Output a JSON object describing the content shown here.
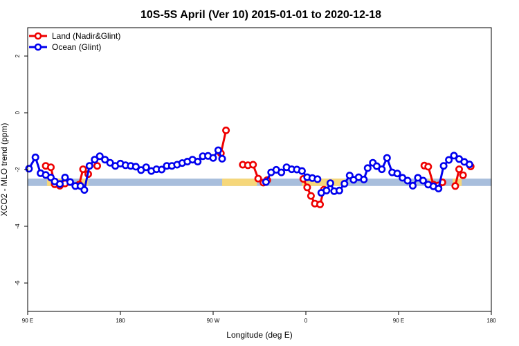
{
  "chart_data": {
    "type": "line",
    "title": "10S-5S April (Ver 10)   2015-01-01 to 2020-12-18",
    "xlabel": "Longitude (deg E)",
    "ylabel": "XCO2 - MLO trend (ppm)",
    "xlim": [
      90,
      450
    ],
    "ylim": [
      -7,
      3
    ],
    "x_ticks": [
      {
        "value": 90,
        "label": "90 E"
      },
      {
        "value": 162,
        "label": "180"
      },
      {
        "value": 234,
        "label": "90 W"
      },
      {
        "value": 306,
        "label": "0"
      },
      {
        "value": 378,
        "label": "90 E"
      },
      {
        "value": 450,
        "label": "180"
      }
    ],
    "y_ticks": [
      {
        "value": 2,
        "label": "2"
      },
      {
        "value": 0,
        "label": "0"
      },
      {
        "value": -2,
        "label": "-2"
      },
      {
        "value": -4,
        "label": "-4"
      },
      {
        "value": -6,
        "label": "-6"
      }
    ],
    "legend_position": "top-left",
    "grid": false,
    "band": {
      "ymin": -2.58,
      "ymax": -2.32,
      "base_color": "#a8bedc",
      "highlight_color": "#f6d77a",
      "highlight_ranges": [
        [
          105,
          118
        ],
        [
          131,
          137
        ],
        [
          241,
          268
        ],
        [
          303,
          336
        ],
        [
          401,
          405
        ],
        [
          420,
          427
        ]
      ]
    },
    "series": [
      {
        "name": "Land (Nadir&Glint)",
        "color": "#ee0000",
        "segments": [
          [
            [
              104,
              -1.87
            ],
            [
              108,
              -1.92
            ],
            [
              111,
              -2.52
            ],
            [
              115,
              -2.57
            ],
            [
              119,
              -2.49
            ]
          ],
          [
            [
              130,
              -2.53
            ],
            [
              133,
              -1.99
            ],
            [
              137,
              -2.16
            ]
          ],
          [
            [
              144,
              -1.87
            ]
          ],
          [
            [
              240,
              -1.43
            ],
            [
              244,
              -0.62
            ]
          ],
          [
            [
              257,
              -1.83
            ],
            [
              261,
              -1.85
            ],
            [
              265,
              -1.83
            ],
            [
              269,
              -2.32
            ],
            [
              273,
              -2.46
            ],
            [
              276,
              -2.37
            ]
          ],
          [
            [
              304,
              -2.33
            ],
            [
              307,
              -2.63
            ],
            [
              310,
              -2.93
            ],
            [
              313,
              -3.2
            ],
            [
              317,
              -3.23
            ],
            [
              320,
              -2.71
            ]
          ],
          [
            [
              398,
              -1.86
            ],
            [
              401,
              -1.9
            ],
            [
              405,
              -2.53
            ],
            [
              409,
              -2.56
            ],
            [
              412,
              -2.45
            ]
          ],
          [
            [
              422,
              -2.58
            ],
            [
              425,
              -1.99
            ],
            [
              428,
              -2.2
            ]
          ],
          [
            [
              434,
              -1.89
            ]
          ]
        ]
      },
      {
        "name": "Ocean (Glint)",
        "color": "#0000ee",
        "segments": [
          [
            [
              91,
              -1.97
            ],
            [
              96,
              -1.57
            ],
            [
              100,
              -2.13
            ],
            [
              104,
              -2.19
            ],
            [
              108,
              -2.28
            ],
            [
              111,
              -2.42
            ],
            [
              115,
              -2.51
            ],
            [
              119,
              -2.28
            ],
            [
              123,
              -2.44
            ],
            [
              127,
              -2.58
            ],
            [
              131,
              -2.58
            ],
            [
              134,
              -2.72
            ],
            [
              138,
              -1.87
            ],
            [
              142,
              -1.65
            ],
            [
              146,
              -1.53
            ],
            [
              150,
              -1.65
            ],
            [
              154,
              -1.76
            ],
            [
              158,
              -1.87
            ],
            [
              162,
              -1.79
            ],
            [
              166,
              -1.85
            ],
            [
              170,
              -1.87
            ],
            [
              174,
              -1.9
            ],
            [
              178,
              -2.02
            ],
            [
              182,
              -1.92
            ],
            [
              186,
              -2.05
            ],
            [
              190,
              -1.99
            ],
            [
              194,
              -2.0
            ],
            [
              198,
              -1.87
            ],
            [
              202,
              -1.87
            ],
            [
              206,
              -1.83
            ],
            [
              210,
              -1.77
            ],
            [
              214,
              -1.72
            ],
            [
              218,
              -1.65
            ],
            [
              222,
              -1.72
            ],
            [
              226,
              -1.53
            ],
            [
              230,
              -1.52
            ],
            [
              234,
              -1.59
            ],
            [
              238,
              -1.32
            ],
            [
              241,
              -1.62
            ]
          ],
          [
            [
              275,
              -2.44
            ],
            [
              279,
              -2.1
            ],
            [
              283,
              -2.01
            ],
            [
              287,
              -2.1
            ],
            [
              291,
              -1.92
            ],
            [
              295,
              -1.99
            ],
            [
              299,
              -2.0
            ],
            [
              303,
              -2.05
            ],
            [
              307,
              -2.27
            ],
            [
              311,
              -2.3
            ],
            [
              315,
              -2.34
            ]
          ],
          [
            [
              318,
              -2.82
            ],
            [
              322,
              -2.74
            ],
            [
              325,
              -2.48
            ],
            [
              328,
              -2.76
            ],
            [
              332,
              -2.74
            ],
            [
              336,
              -2.5
            ],
            [
              340,
              -2.21
            ],
            [
              343,
              -2.36
            ],
            [
              347,
              -2.27
            ],
            [
              351,
              -2.35
            ],
            [
              354,
              -1.95
            ],
            [
              358,
              -1.76
            ],
            [
              361,
              -1.88
            ],
            [
              365,
              -1.99
            ],
            [
              369,
              -1.59
            ],
            [
              373,
              -2.1
            ],
            [
              377,
              -2.14
            ],
            [
              381,
              -2.29
            ],
            [
              385,
              -2.39
            ],
            [
              389,
              -2.57
            ],
            [
              393,
              -2.29
            ],
            [
              397,
              -2.39
            ],
            [
              401,
              -2.53
            ],
            [
              405,
              -2.59
            ],
            [
              409,
              -2.67
            ],
            [
              413,
              -1.87
            ],
            [
              417,
              -1.66
            ],
            [
              421,
              -1.51
            ],
            [
              425,
              -1.63
            ],
            [
              429,
              -1.73
            ],
            [
              433,
              -1.82
            ]
          ]
        ]
      }
    ]
  }
}
